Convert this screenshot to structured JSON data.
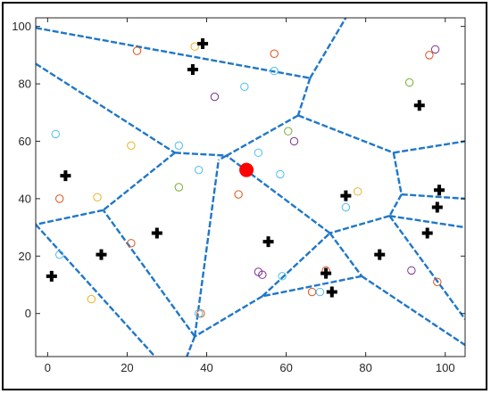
{
  "chart_data": {
    "type": "scatter",
    "title": "",
    "xlabel": "",
    "ylabel": "",
    "xlim": [
      -3,
      105
    ],
    "ylim": [
      -15,
      103
    ],
    "x_ticks": [
      0,
      20,
      40,
      60,
      80,
      100
    ],
    "y_ticks": [
      0,
      20,
      40,
      60,
      80,
      100
    ],
    "x_tick_labels": [
      "0",
      "20",
      "40",
      "60",
      "80",
      "100"
    ],
    "y_tick_labels": [
      "0",
      "20",
      "40",
      "60",
      "80",
      "100"
    ],
    "grid": false,
    "colors": {
      "voronoi": "#1f77c8",
      "seed": "#000000",
      "highlight": "#ff0000",
      "axis": "#262626"
    },
    "seeds": [
      [
        39,
        94
      ],
      [
        36.5,
        85
      ],
      [
        93.5,
        72.5
      ],
      [
        4.5,
        48
      ],
      [
        75,
        41
      ],
      [
        98.5,
        43
      ],
      [
        98,
        37
      ],
      [
        27.5,
        28
      ],
      [
        55.5,
        25
      ],
      [
        95.5,
        28
      ],
      [
        13.5,
        20.5
      ],
      [
        83.5,
        20.5
      ],
      [
        1,
        13
      ],
      [
        70,
        14
      ],
      [
        71.5,
        7.5
      ]
    ],
    "highlight_point": [
      50,
      50
    ],
    "circles": [
      {
        "color": "#d95319",
        "points": [
          [
            22.5,
            91.5
          ],
          [
            57,
            90.5
          ],
          [
            96,
            90
          ],
          [
            21,
            24.5
          ],
          [
            70,
            15
          ],
          [
            48,
            41.5
          ],
          [
            98,
            11
          ],
          [
            66.5,
            7.5
          ],
          [
            3,
            40
          ],
          [
            38.5,
            0
          ]
        ]
      },
      {
        "color": "#edb120",
        "points": [
          [
            37,
            93
          ],
          [
            21,
            58.5
          ],
          [
            12.5,
            40.5
          ],
          [
            78,
            42.5
          ],
          [
            11,
            5
          ]
        ]
      },
      {
        "color": "#7e2f8e",
        "points": [
          [
            97.5,
            92
          ],
          [
            42,
            75.5
          ],
          [
            62,
            60
          ],
          [
            91.5,
            15
          ],
          [
            53,
            14.5
          ],
          [
            54,
            13.5
          ]
        ]
      },
      {
        "color": "#77ac30",
        "points": [
          [
            91,
            80.5
          ],
          [
            60.5,
            63.5
          ],
          [
            33,
            44
          ]
        ]
      },
      {
        "color": "#4dbeee",
        "points": [
          [
            49.5,
            79
          ],
          [
            57,
            84.5
          ],
          [
            2,
            62.5
          ],
          [
            33,
            58.5
          ],
          [
            38,
            50
          ],
          [
            53,
            56
          ],
          [
            58.5,
            48.5
          ],
          [
            75,
            37
          ],
          [
            3,
            20.5
          ],
          [
            59,
            13
          ],
          [
            68.5,
            7.5
          ],
          [
            38,
            0
          ]
        ]
      }
    ],
    "voronoi_edges": [
      [
        [
          -3,
          99.5
        ],
        [
          66,
          82
        ]
      ],
      [
        [
          66,
          82
        ],
        [
          75,
          103
        ]
      ],
      [
        [
          66,
          82
        ],
        [
          63,
          69
        ]
      ],
      [
        [
          63,
          69
        ],
        [
          45,
          55
        ]
      ],
      [
        [
          63,
          69
        ],
        [
          87,
          56
        ]
      ],
      [
        [
          87,
          56
        ],
        [
          105,
          60
        ]
      ],
      [
        [
          87,
          56
        ],
        [
          89,
          41.5
        ]
      ],
      [
        [
          89,
          41.5
        ],
        [
          105,
          40
        ]
      ],
      [
        [
          89,
          41.5
        ],
        [
          86,
          34
        ]
      ],
      [
        [
          86,
          34
        ],
        [
          105,
          30
        ]
      ],
      [
        [
          86,
          34
        ],
        [
          105,
          -2
        ]
      ],
      [
        [
          86,
          34
        ],
        [
          71,
          28
        ]
      ],
      [
        [
          71,
          28
        ],
        [
          45,
          55
        ]
      ],
      [
        [
          71,
          28
        ],
        [
          79,
          13
        ]
      ],
      [
        [
          79,
          13
        ],
        [
          105,
          -11
        ]
      ],
      [
        [
          79,
          13
        ],
        [
          54,
          6
        ]
      ],
      [
        [
          54,
          6
        ],
        [
          37,
          -8
        ]
      ],
      [
        [
          54,
          6
        ],
        [
          71,
          28
        ]
      ],
      [
        [
          37,
          -8
        ],
        [
          43,
          53.5
        ]
      ],
      [
        [
          37,
          -8
        ],
        [
          35,
          -15
        ]
      ],
      [
        [
          37,
          -8
        ],
        [
          14,
          36
        ]
      ],
      [
        [
          -3,
          87
        ],
        [
          32,
          56
        ]
      ],
      [
        [
          32,
          56
        ],
        [
          45,
          55
        ]
      ],
      [
        [
          32,
          56
        ],
        [
          14,
          36
        ]
      ],
      [
        [
          14,
          36
        ],
        [
          -3,
          31
        ]
      ],
      [
        [
          -3,
          31
        ],
        [
          27,
          -15
        ]
      ],
      [
        [
          45,
          55
        ],
        [
          43,
          53.5
        ]
      ]
    ]
  }
}
